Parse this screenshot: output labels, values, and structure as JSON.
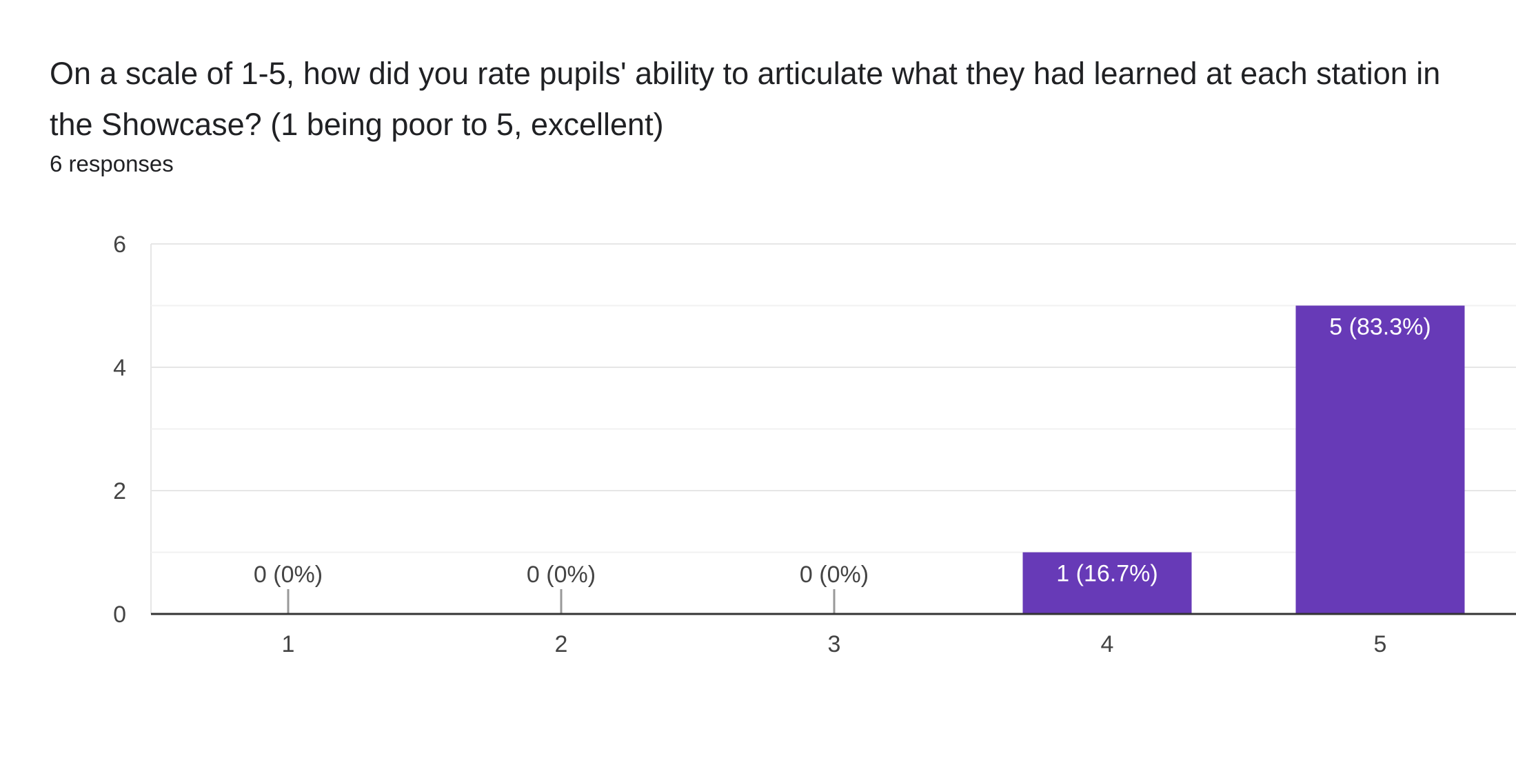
{
  "question": {
    "title": "On a scale of 1-5, how did you rate pupils' ability to articulate what they had learned at each station in the Showcase? (1 being poor to 5, excellent)",
    "responses_label": "6 responses"
  },
  "colors": {
    "bar": "#673ab7",
    "bar_label_inside": "#ffffff",
    "bar_label_outside": "#444444",
    "grid_major": "#e6e6e6",
    "grid_minor": "#f1f1f1",
    "axis": "#333333",
    "zero_tick": "#999999"
  },
  "chart_data": {
    "type": "bar",
    "categories": [
      "1",
      "2",
      "3",
      "4",
      "5"
    ],
    "values": [
      0,
      0,
      0,
      1,
      5
    ],
    "data_labels": [
      "0 (0%)",
      "0 (0%)",
      "0 (0%)",
      "1 (16.7%)",
      "5 (83.3%)"
    ],
    "y_ticks": [
      0,
      2,
      4,
      6
    ],
    "ylim": [
      0,
      6
    ],
    "title": "",
    "xlabel": "",
    "ylabel": "",
    "grid": true,
    "legend": "none"
  }
}
